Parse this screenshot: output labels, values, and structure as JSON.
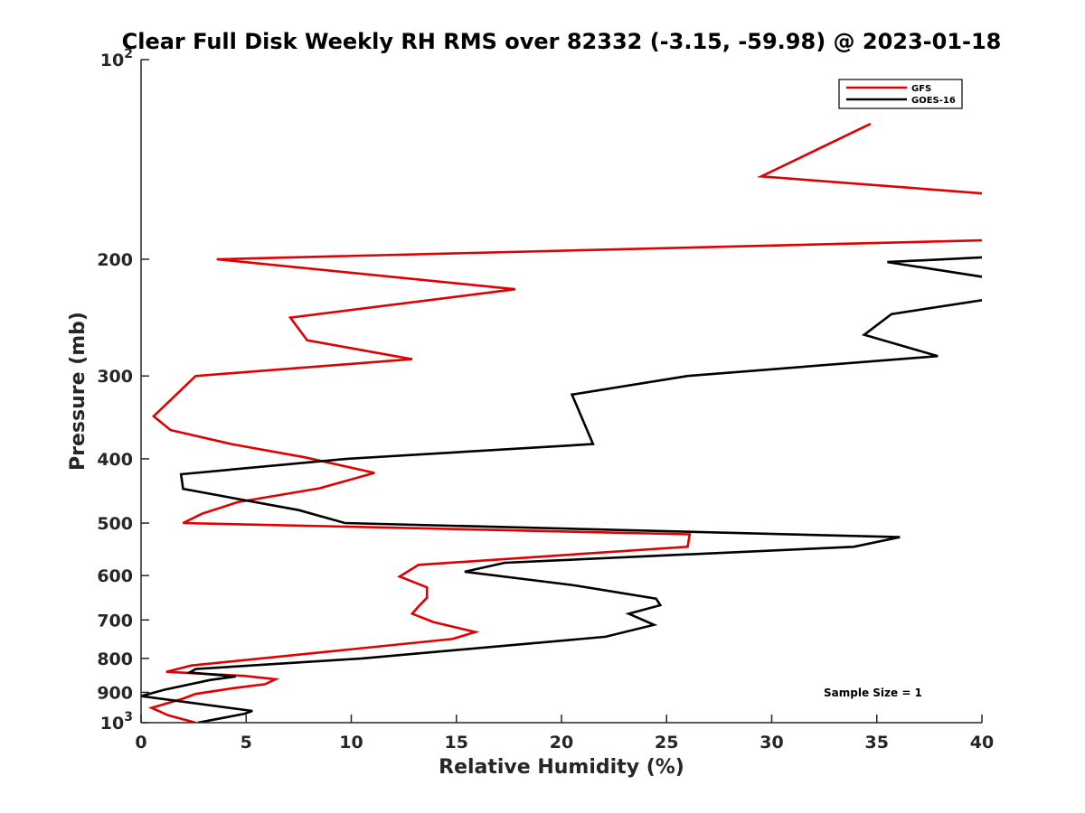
{
  "chart_data": {
    "type": "line",
    "title": "Clear Full Disk Weekly RH RMS over 82332 (-3.15, -59.98) @ 2023-01-18",
    "xlabel": "Relative Humidity (%)",
    "ylabel": "Pressure (mb)",
    "xlim": [
      0,
      40
    ],
    "ylim": [
      100,
      1000
    ],
    "y_scale": "log",
    "y_reversed": true,
    "x_ticks": [
      "0",
      "5",
      "10",
      "15",
      "20",
      "25",
      "30",
      "35",
      "40"
    ],
    "y_ticks": [
      {
        "value": 100,
        "base": "10",
        "exp": "2"
      },
      {
        "value": 200,
        "label": "200"
      },
      {
        "value": 300,
        "label": "300"
      },
      {
        "value": 400,
        "label": "400"
      },
      {
        "value": 500,
        "label": "500"
      },
      {
        "value": 600,
        "label": "600"
      },
      {
        "value": 700,
        "label": "700"
      },
      {
        "value": 800,
        "label": "800"
      },
      {
        "value": 900,
        "label": "900"
      },
      {
        "value": 1000,
        "base": "10",
        "exp": "3"
      }
    ],
    "legend_position": "top-right",
    "grid": false,
    "annotation": "Sample Size = 1",
    "series": [
      {
        "name": "GFS",
        "color": "#e00000",
        "points": [
          [
            34.7,
            125
          ],
          [
            29.5,
            150
          ],
          [
            41,
            160
          ],
          [
            41,
            187
          ],
          [
            3.6,
            200
          ],
          [
            17.8,
            222
          ],
          [
            7.1,
            245
          ],
          [
            7.9,
            265
          ],
          [
            12.9,
            283
          ],
          [
            2.6,
            300
          ],
          [
            0.6,
            345
          ],
          [
            1.4,
            362
          ],
          [
            4.3,
            380
          ],
          [
            7.8,
            398
          ],
          [
            11.1,
            420
          ],
          [
            8.5,
            443
          ],
          [
            4.6,
            465
          ],
          [
            2.9,
            484
          ],
          [
            2,
            500
          ],
          [
            26.1,
            520
          ],
          [
            26,
            543
          ],
          [
            13.2,
            578
          ],
          [
            12.3,
            602
          ],
          [
            13.6,
            625
          ],
          [
            13.6,
            648
          ],
          [
            13.2,
            668
          ],
          [
            12.9,
            685
          ],
          [
            13.9,
            705
          ],
          [
            15.9,
            730
          ],
          [
            14.8,
            748
          ],
          [
            2.4,
            820
          ],
          [
            1.2,
            838
          ],
          [
            4.9,
            850
          ],
          [
            6.4,
            860
          ],
          [
            5.9,
            875
          ],
          [
            4.3,
            888
          ],
          [
            2.6,
            905
          ],
          [
            2,
            920
          ],
          [
            0.5,
            950
          ],
          [
            1.3,
            975
          ],
          [
            2.6,
            1000
          ]
        ]
      },
      {
        "name": "GOES-16",
        "color": "#000000",
        "points": [
          [
            41,
            198
          ],
          [
            35.5,
            202
          ],
          [
            41,
            215
          ],
          [
            41,
            228
          ],
          [
            35.7,
            242
          ],
          [
            34.4,
            260
          ],
          [
            37.9,
            280
          ],
          [
            26,
            300
          ],
          [
            20.5,
            320
          ],
          [
            21.5,
            380
          ],
          [
            9.8,
            400
          ],
          [
            1.9,
            422
          ],
          [
            2,
            444
          ],
          [
            7.5,
            478
          ],
          [
            9.7,
            500
          ],
          [
            36.1,
            525
          ],
          [
            33.9,
            543
          ],
          [
            17.3,
            574
          ],
          [
            15.4,
            592
          ],
          [
            20.5,
            620
          ],
          [
            24.5,
            650
          ],
          [
            24.7,
            665
          ],
          [
            23.2,
            685
          ],
          [
            24.4,
            712
          ],
          [
            22.1,
            742
          ],
          [
            10.5,
            800
          ],
          [
            2.6,
            830
          ],
          [
            2.3,
            840
          ],
          [
            4.5,
            852
          ],
          [
            3.3,
            862
          ],
          [
            1.1,
            892
          ],
          [
            0,
            912
          ],
          [
            5.3,
            960
          ],
          [
            4.9,
            970
          ],
          [
            2.7,
            1000
          ]
        ]
      }
    ]
  }
}
